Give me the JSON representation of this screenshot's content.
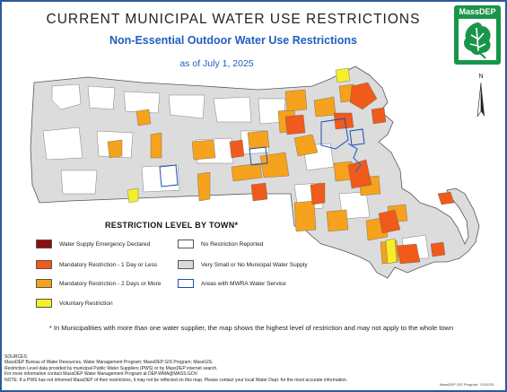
{
  "header": {
    "title": "CURRENT MUNICIPAL WATER USE RESTRICTIONS",
    "subtitle": "Non-Essential Outdoor Water Use Restrictions",
    "date": "as of July 1, 2025"
  },
  "logo": {
    "text": "MassDEP",
    "icon": "oak-leaf-icon"
  },
  "north_arrow": {
    "label": "N"
  },
  "legend": {
    "title": "RESTRICTION LEVEL BY TOWN*",
    "items": [
      {
        "label": "Water Supply Emergency Declared",
        "color": "#8b0f0f"
      },
      {
        "label": "Mandatory Restriction - 1 Day or Less",
        "color": "#f05a1a"
      },
      {
        "label": "Mandatory Restriction - 2 Days or More",
        "color": "#f6a21c"
      },
      {
        "label": "Voluntary Restriction",
        "color": "#f5ef2a"
      },
      {
        "label": "No Restriction Reported",
        "color": "#ffffff"
      },
      {
        "label": "Very Small or No Municipal Water Supply",
        "color": "#d9d9d9"
      },
      {
        "label": "Areas with MWRA Water Service",
        "color": "#1a4fb0"
      }
    ]
  },
  "note": "* In Municipalities with more than one water supplier, the map shows the highest level of restriction and may not apply to the whole town",
  "sources": [
    "SOURCES:",
    "MassDEP Bureau of Water Resources, Water Management Program; MassDEP GIS Program; MassGIS.",
    "Restriction Level data provided by municipal Public Water Suppliers (PWS) or by MassDEP internet search.",
    "For more information contact MassDEP Water Management Program at DEP.WMA@MASS.GOV",
    "NOTE: If a PWS has not informed MassDEP of their restrictions, it may not be reflected on this map. Please contact your local Water Dept. for the most accurate information."
  ],
  "credit": "MassDEP GIS Program: 7/1/2025"
}
